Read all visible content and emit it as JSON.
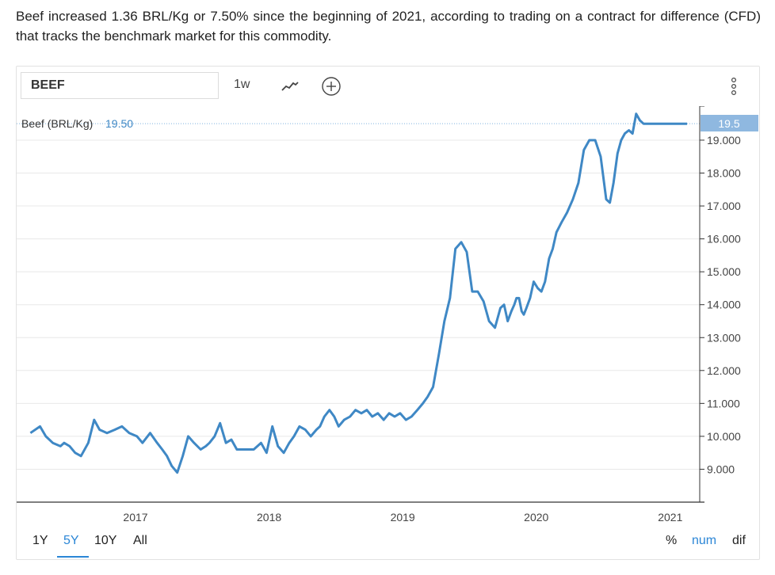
{
  "intro_text": "Beef increased 1.36 BRL/Kg or 7.50% since the beginning of 2021, according to trading on a contract for difference (CFD) that tracks the benchmark market for this commodity.",
  "toolbar": {
    "symbol": "BEEF",
    "interval": "1w",
    "line_icon": "line-chart-icon",
    "add_icon": "plus-circle-icon",
    "more_icon": "vertical-dots-icon"
  },
  "legend": {
    "label": "Beef (BRL/Kg)",
    "value": "19.50"
  },
  "price_badge": "19.5",
  "ranges": [
    "1Y",
    "5Y",
    "10Y",
    "All"
  ],
  "active_range": "5Y",
  "modes": [
    "%",
    "num",
    "dif"
  ],
  "active_mode": "num",
  "colors": {
    "line": "#3f88c5",
    "accent": "#2b86d6",
    "badge": "#8fb8e0",
    "grid": "#e8e8e8"
  },
  "chart_data": {
    "type": "line",
    "title": "",
    "xlabel": "",
    "ylabel": "",
    "ylim": [
      8.0,
      20.0
    ],
    "yticks": [
      "9.000",
      "10.000",
      "11.000",
      "12.000",
      "13.000",
      "14.000",
      "15.000",
      "16.000",
      "17.000",
      "18.000",
      "19.000"
    ],
    "xticks": [
      "2017",
      "2018",
      "2019",
      "2020",
      "2021"
    ],
    "grid": true,
    "series": [
      {
        "name": "Beef (BRL/Kg)",
        "x": [
          "2016-03-20",
          "2016-04-15",
          "2016-05-01",
          "2016-05-20",
          "2016-06-10",
          "2016-06-20",
          "2016-07-05",
          "2016-07-20",
          "2016-08-05",
          "2016-08-25",
          "2016-09-10",
          "2016-09-25",
          "2016-10-15",
          "2016-11-05",
          "2016-11-25",
          "2016-12-15",
          "2017-01-05",
          "2017-01-20",
          "2017-02-10",
          "2017-03-01",
          "2017-03-15",
          "2017-03-28",
          "2017-04-10",
          "2017-04-25",
          "2017-05-10",
          "2017-05-25",
          "2017-06-10",
          "2017-06-28",
          "2017-07-12",
          "2017-07-22",
          "2017-08-05",
          "2017-08-20",
          "2017-09-05",
          "2017-09-20",
          "2017-10-05",
          "2017-10-20",
          "2017-11-05",
          "2017-11-20",
          "2017-12-10",
          "2017-12-25",
          "2018-01-10",
          "2018-01-25",
          "2018-02-10",
          "2018-02-25",
          "2018-03-10",
          "2018-03-25",
          "2018-04-10",
          "2018-04-25",
          "2018-05-10",
          "2018-05-20",
          "2018-06-01",
          "2018-06-15",
          "2018-06-28",
          "2018-07-10",
          "2018-07-25",
          "2018-08-10",
          "2018-08-25",
          "2018-09-10",
          "2018-09-25",
          "2018-10-10",
          "2018-10-25",
          "2018-11-10",
          "2018-11-25",
          "2018-12-10",
          "2018-12-25",
          "2019-01-10",
          "2019-01-25",
          "2019-02-10",
          "2019-02-25",
          "2019-03-10",
          "2019-03-25",
          "2019-04-10",
          "2019-04-25",
          "2019-05-10",
          "2019-05-25",
          "2019-06-10",
          "2019-06-25",
          "2019-07-10",
          "2019-07-25",
          "2019-08-10",
          "2019-08-25",
          "2019-09-10",
          "2019-09-25",
          "2019-10-05",
          "2019-10-15",
          "2019-10-25",
          "2019-11-02",
          "2019-11-08",
          "2019-11-15",
          "2019-11-22",
          "2019-11-28",
          "2019-12-05",
          "2019-12-15",
          "2019-12-25",
          "2020-01-05",
          "2020-01-15",
          "2020-01-25",
          "2020-02-05",
          "2020-02-15",
          "2020-02-25",
          "2020-03-10",
          "2020-03-25",
          "2020-04-10",
          "2020-04-25",
          "2020-05-10",
          "2020-05-25",
          "2020-06-10",
          "2020-06-25",
          "2020-07-10",
          "2020-07-20",
          "2020-07-30",
          "2020-08-10",
          "2020-08-20",
          "2020-08-30",
          "2020-09-10",
          "2020-09-20",
          "2020-09-30",
          "2020-10-10",
          "2020-10-20",
          "2020-10-30",
          "2020-11-05",
          "2020-11-15",
          "2020-11-25",
          "2020-12-05",
          "2020-12-12",
          "2020-12-20",
          "2020-12-31",
          "2021-01-10",
          "2021-01-20",
          "2021-02-01",
          "2021-02-05",
          "2021-02-12",
          "2021-02-16"
        ],
        "y": [
          10.1,
          10.3,
          10.0,
          9.8,
          9.7,
          9.8,
          9.7,
          9.5,
          9.4,
          9.8,
          10.5,
          10.2,
          10.1,
          10.2,
          10.3,
          10.1,
          10.0,
          9.8,
          10.1,
          9.8,
          9.6,
          9.4,
          9.1,
          8.9,
          9.4,
          10.0,
          9.8,
          9.6,
          9.7,
          9.8,
          10.0,
          10.4,
          9.8,
          9.9,
          9.6,
          9.6,
          9.6,
          9.6,
          9.8,
          9.5,
          10.3,
          9.7,
          9.5,
          9.8,
          10.0,
          10.3,
          10.2,
          10.0,
          10.2,
          10.3,
          10.6,
          10.8,
          10.6,
          10.3,
          10.5,
          10.6,
          10.8,
          10.7,
          10.8,
          10.6,
          10.7,
          10.5,
          10.7,
          10.6,
          10.7,
          10.5,
          10.6,
          10.8,
          11.0,
          11.2,
          11.5,
          12.5,
          13.5,
          14.2,
          15.7,
          15.9,
          15.6,
          14.4,
          14.4,
          14.1,
          13.5,
          13.3,
          13.9,
          14.0,
          13.5,
          13.8,
          14.0,
          14.2,
          14.2,
          13.8,
          13.7,
          13.9,
          14.2,
          14.7,
          14.5,
          14.4,
          14.7,
          15.4,
          15.7,
          16.2,
          16.5,
          16.8,
          17.2,
          17.7,
          18.7,
          19.0,
          19.0,
          18.5,
          17.2,
          17.1,
          17.7,
          18.6,
          19.0,
          19.2,
          19.3,
          19.2,
          19.8,
          19.6,
          19.5,
          19.5,
          19.5,
          19.5,
          19.5,
          19.5,
          19.5,
          19.5,
          19.5,
          19.5,
          19.5,
          19.5,
          19.5,
          19.5,
          19.5
        ]
      }
    ]
  }
}
